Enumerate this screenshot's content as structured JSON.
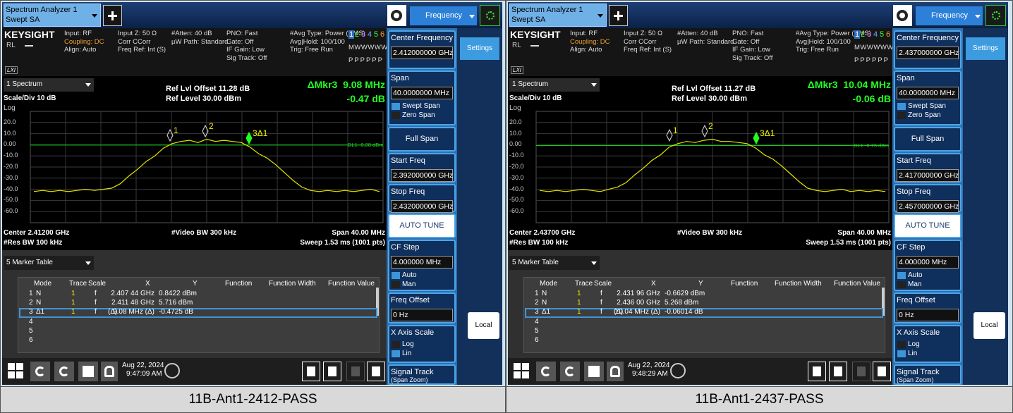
{
  "panels": [
    {
      "tab": {
        "title": "Spectrum Analyzer 1",
        "mode": "Swept SA"
      },
      "menu": "Frequency",
      "info": {
        "brand": "KEYSIGHT",
        "rl": "RL",
        "lxi": "LXI",
        "col1": [
          "Input: RF",
          "Coupling: DC",
          "Align: Auto"
        ],
        "col2": [
          "Input Z: 50 Ω",
          "Corr CCorr",
          "Freq Ref: Int (S)"
        ],
        "col3": [
          "#Atten: 40 dB",
          "µW Path: Standard"
        ],
        "col4": [
          "PNO: Fast",
          "Gate: Off",
          "IF Gain: Low",
          "Sig Track: Off"
        ],
        "col5": [
          "#Avg Type: Power (RMS)",
          "Avg|Hold: 100/100",
          "Trig: Free Run"
        ],
        "traces": [
          "1",
          "2",
          "3",
          "4",
          "5",
          "6"
        ],
        "trace_types": "MWWWWW",
        "detectors": "PPPPPP"
      },
      "window": "1 Spectrum",
      "scale": "Scale/Div 10 dB",
      "log": "Log",
      "ref_offset": "Ref Lvl Offset 11.28 dB",
      "ref_level": "Ref Level 30.00 dBm",
      "marker_readout": {
        "x": "ΔMkr3  9.08 MHz",
        "y": "-0.47 dB"
      },
      "yaxis": [
        {
          "value": 20,
          "label": "20.0"
        },
        {
          "value": 10,
          "label": "10.0"
        },
        {
          "value": 0,
          "label": "0.00"
        },
        {
          "value": -10,
          "label": "-10.0"
        },
        {
          "value": -20,
          "label": "-20.0"
        },
        {
          "value": -30,
          "label": "-30.0"
        },
        {
          "value": -40,
          "label": "-40.0"
        },
        {
          "value": -50,
          "label": "-50.0"
        },
        {
          "value": -60,
          "label": "-60.0"
        }
      ],
      "trace": {
        "ylim": [
          -70,
          30
        ],
        "values": [
          -42,
          -41,
          -42,
          -41,
          -42,
          -41,
          -40,
          -41,
          -40,
          -39,
          -35,
          -28,
          -22,
          -15,
          -10,
          -3,
          1,
          3,
          4,
          2,
          5,
          3,
          4,
          3,
          2,
          -2,
          -8,
          -12,
          -18,
          -25,
          -32,
          -38,
          -41,
          -42,
          -41,
          -42,
          -41,
          -42,
          -41,
          -40,
          -42
        ]
      },
      "display_line": {
        "label": "DL1 -0.28 dBm",
        "value": -0.28
      },
      "markers": [
        "1",
        "2",
        "3Δ1"
      ],
      "footer": {
        "center": "Center 2.41200 GHz",
        "vbw": "#Video BW 300 kHz",
        "span": "Span 40.00 MHz",
        "rbw": "#Res BW 100 kHz",
        "sweep": "Sweep 1.53 ms (1001 pts)"
      },
      "marker_table": {
        "title": "5 Marker Table",
        "headers": [
          "Mode",
          "Trace",
          "Scale",
          "X",
          "Y",
          "Function",
          "Function Width",
          "Function Value"
        ],
        "rows": [
          {
            "n": "1",
            "mode": "N",
            "trace": "1",
            "scale": "f",
            "x": "2.407 44 GHz",
            "y": "0.8422 dBm"
          },
          {
            "n": "2",
            "mode": "N",
            "trace": "1",
            "scale": "f",
            "x": "2.411 48 GHz",
            "y": "5.716 dBm"
          },
          {
            "n": "3",
            "mode": "Δ1",
            "trace": "1",
            "scale": "f",
            "delta": "(Δ)",
            "x": "9.08 MHz (Δ)",
            "y": "-0.4725 dB"
          },
          {
            "n": "4"
          },
          {
            "n": "5"
          },
          {
            "n": "6"
          }
        ]
      },
      "taskbar": {
        "date": "Aug 22, 2024",
        "time": "9:47:09 AM"
      },
      "softkeys": [
        {
          "label": "Center Frequency",
          "value": "2.412000000 GHz"
        },
        {
          "label": "Span",
          "value": "40.0000000 MHz",
          "options": [
            "Swept Span",
            "Zero Span"
          ]
        },
        {
          "button": "Full Span"
        },
        {
          "label": "Start Freq",
          "value": "2.392000000 GHz"
        },
        {
          "label": "Stop Freq",
          "value": "2.432000000 GHz"
        },
        {
          "button": "AUTO TUNE"
        },
        {
          "label": "CF Step",
          "value": "4.000000 MHz",
          "options": [
            "Auto",
            "Man"
          ]
        },
        {
          "label": "Freq Offset",
          "value": "0 Hz"
        },
        {
          "label": "X Axis Scale",
          "options": [
            "Log",
            "Lin"
          ]
        },
        {
          "label": "Signal Track",
          "sub": "(Span Zoom)"
        }
      ],
      "side": {
        "settings": "Settings",
        "local": "Local"
      },
      "caption": "11B-Ant1-2412-PASS"
    },
    {
      "tab": {
        "title": "Spectrum Analyzer 1",
        "mode": "Swept SA"
      },
      "menu": "Frequency",
      "info": {
        "brand": "KEYSIGHT",
        "rl": "RL",
        "lxi": "LXI",
        "col1": [
          "Input: RF",
          "Coupling: DC",
          "Align: Auto"
        ],
        "col2": [
          "Input Z: 50 Ω",
          "Corr CCorr",
          "Freq Ref: Int (S)"
        ],
        "col3": [
          "#Atten: 40 dB",
          "µW Path: Standard"
        ],
        "col4": [
          "PNO: Fast",
          "Gate: Off",
          "IF Gain: Low",
          "Sig Track: Off"
        ],
        "col5": [
          "#Avg Type: Power (RMS)",
          "Avg|Hold: 100/100",
          "Trig: Free Run"
        ],
        "traces": [
          "1",
          "2",
          "3",
          "4",
          "5",
          "6"
        ],
        "trace_types": "MWWWWW",
        "detectors": "PPPPPP"
      },
      "window": "1 Spectrum",
      "scale": "Scale/Div 10 dB",
      "log": "Log",
      "ref_offset": "Ref Lvl Offset 11.27 dB",
      "ref_level": "Ref Level 30.00 dBm",
      "marker_readout": {
        "x": "ΔMkr3  10.04 MHz",
        "y": "-0.06 dB"
      },
      "yaxis": [
        {
          "value": 20,
          "label": "20.0"
        },
        {
          "value": 10,
          "label": "10.0"
        },
        {
          "value": 0,
          "label": "0.00"
        },
        {
          "value": -10,
          "label": "-10.0"
        },
        {
          "value": -20,
          "label": "-20.0"
        },
        {
          "value": -30,
          "label": "-30.0"
        },
        {
          "value": -40,
          "label": "-40.0"
        },
        {
          "value": -50,
          "label": "-50.0"
        },
        {
          "value": -60,
          "label": "-60.0"
        }
      ],
      "trace": {
        "ylim": [
          -70,
          30
        ],
        "values": [
          -41,
          -42,
          -41,
          -42,
          -41,
          -40,
          -41,
          -42,
          -40,
          -38,
          -34,
          -27,
          -21,
          -14,
          -9,
          -2,
          1,
          3,
          2,
          4,
          5,
          3,
          3,
          2,
          1,
          -3,
          -9,
          -13,
          -19,
          -26,
          -33,
          -39,
          -41,
          -42,
          -41,
          -40,
          -42,
          -41,
          -42,
          -41,
          -42
        ]
      },
      "display_line": {
        "label": "DL1 -0.73 dBm",
        "value": -0.73
      },
      "markers": [
        "1",
        "2",
        "3Δ1"
      ],
      "footer": {
        "center": "Center 2.43700 GHz",
        "vbw": "#Video BW 300 kHz",
        "span": "Span 40.00 MHz",
        "rbw": "#Res BW 100 kHz",
        "sweep": "Sweep 1.53 ms (1001 pts)"
      },
      "marker_table": {
        "title": "5 Marker Table",
        "headers": [
          "Mode",
          "Trace",
          "Scale",
          "X",
          "Y",
          "Function",
          "Function Width",
          "Function Value"
        ],
        "rows": [
          {
            "n": "1",
            "mode": "N",
            "trace": "1",
            "scale": "f",
            "x": "2.431 96 GHz",
            "y": "-0.6629 dBm"
          },
          {
            "n": "2",
            "mode": "N",
            "trace": "1",
            "scale": "f",
            "x": "2.436 00 GHz",
            "y": "5.268 dBm"
          },
          {
            "n": "3",
            "mode": "Δ1",
            "trace": "1",
            "scale": "f",
            "delta": "(Δ)",
            "x": "10.04 MHz (Δ)",
            "y": "-0.06014 dB"
          },
          {
            "n": "4"
          },
          {
            "n": "5"
          },
          {
            "n": "6"
          }
        ]
      },
      "taskbar": {
        "date": "Aug 22, 2024",
        "time": "9:48:29 AM"
      },
      "softkeys": [
        {
          "label": "Center Frequency",
          "value": "2.437000000 GHz"
        },
        {
          "label": "Span",
          "value": "40.0000000 MHz",
          "options": [
            "Swept Span",
            "Zero Span"
          ]
        },
        {
          "button": "Full Span"
        },
        {
          "label": "Start Freq",
          "value": "2.417000000 GHz"
        },
        {
          "label": "Stop Freq",
          "value": "2.457000000 GHz"
        },
        {
          "button": "AUTO TUNE"
        },
        {
          "label": "CF Step",
          "value": "4.000000 MHz",
          "options": [
            "Auto",
            "Man"
          ]
        },
        {
          "label": "Freq Offset",
          "value": "0 Hz"
        },
        {
          "label": "X Axis Scale",
          "options": [
            "Log",
            "Lin"
          ]
        },
        {
          "label": "Signal Track",
          "sub": "(Span Zoom)"
        }
      ],
      "side": {
        "settings": "Settings",
        "local": "Local"
      },
      "caption": "11B-Ant1-2437-PASS"
    }
  ]
}
